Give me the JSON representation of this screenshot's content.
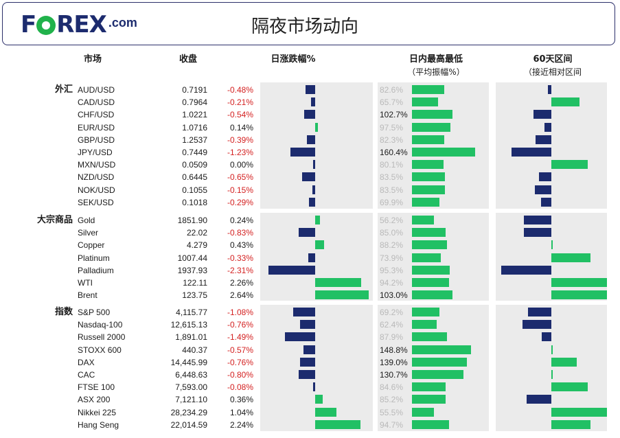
{
  "logo": {
    "word_left": "F",
    "word_right": "REX",
    "suffix": ".com"
  },
  "title": "隔夜市场动向",
  "columns": {
    "market": "市场",
    "close": "收盘",
    "daily_change": "日涨跌幅%",
    "intraday": "日内最高最低",
    "intraday_sub": "（平均振幅%）",
    "range60": "60天区间",
    "range60_sub": "（接近相对区间"
  },
  "colors": {
    "navy": "#1c2b6e",
    "green": "#21c064",
    "negative": "#d42020",
    "panel": "#ebebeb"
  },
  "groups": [
    {
      "label": "外汇",
      "rows": [
        {
          "name": "AUD/USD",
          "close": "0.7191",
          "chg": "-0.48%",
          "chg_val": -0.48,
          "amp": "82.6%",
          "amp_val": 82.6,
          "pos60": -0.06
        },
        {
          "name": "CAD/USD",
          "close": "0.7964",
          "chg": "-0.21%",
          "chg_val": -0.21,
          "amp": "65.7%",
          "amp_val": 65.7,
          "pos60": 0.5
        },
        {
          "name": "CHF/USD",
          "close": "1.0221",
          "chg": "-0.54%",
          "chg_val": -0.54,
          "amp": "102.7%",
          "amp_val": 102.7,
          "pos60": -0.32
        },
        {
          "name": "EUR/USD",
          "close": "1.0716",
          "chg": "0.14%",
          "chg_val": 0.14,
          "amp": "97.5%",
          "amp_val": 97.5,
          "pos60": -0.12
        },
        {
          "name": "GBP/USD",
          "close": "1.2537",
          "chg": "-0.39%",
          "chg_val": -0.39,
          "amp": "82.3%",
          "amp_val": 82.3,
          "pos60": -0.28
        },
        {
          "name": "JPY/USD",
          "close": "0.7449",
          "chg": "-1.23%",
          "chg_val": -1.23,
          "amp": "160.4%",
          "amp_val": 160.4,
          "pos60": -0.72
        },
        {
          "name": "MXN/USD",
          "close": "0.0509",
          "chg": "0.00%",
          "chg_val": 0.0,
          "amp": "80.1%",
          "amp_val": 80.1,
          "pos60": 0.65
        },
        {
          "name": "NZD/USD",
          "close": "0.6445",
          "chg": "-0.65%",
          "chg_val": -0.65,
          "amp": "83.5%",
          "amp_val": 83.5,
          "pos60": -0.22
        },
        {
          "name": "NOK/USD",
          "close": "0.1055",
          "chg": "-0.15%",
          "chg_val": -0.15,
          "amp": "83.5%",
          "amp_val": 83.5,
          "pos60": -0.3
        },
        {
          "name": "SEK/USD",
          "close": "0.1018",
          "chg": "-0.29%",
          "chg_val": -0.29,
          "amp": "69.9%",
          "amp_val": 69.9,
          "pos60": -0.19
        }
      ]
    },
    {
      "label": "大宗商品",
      "rows": [
        {
          "name": "Gold",
          "close": "1851.90",
          "chg": "0.24%",
          "chg_val": 0.24,
          "amp": "56.2%",
          "amp_val": 56.2,
          "pos60": -0.5
        },
        {
          "name": "Silver",
          "close": "22.02",
          "chg": "-0.83%",
          "chg_val": -0.83,
          "amp": "85.0%",
          "amp_val": 85.0,
          "pos60": -0.5
        },
        {
          "name": "Copper",
          "close": "4.279",
          "chg": "0.43%",
          "chg_val": 0.43,
          "amp": "88.2%",
          "amp_val": 88.2,
          "pos60": 0.02
        },
        {
          "name": "Platinum",
          "close": "1007.44",
          "chg": "-0.33%",
          "chg_val": -0.33,
          "amp": "73.9%",
          "amp_val": 73.9,
          "pos60": 0.7
        },
        {
          "name": "Palladium",
          "close": "1937.93",
          "chg": "-2.31%",
          "chg_val": -2.31,
          "amp": "95.3%",
          "amp_val": 95.3,
          "pos60": -0.9
        },
        {
          "name": "WTI",
          "close": "122.11",
          "chg": "2.26%",
          "chg_val": 2.26,
          "amp": "94.2%",
          "amp_val": 94.2,
          "pos60": 1.0
        },
        {
          "name": "Brent",
          "close": "123.75",
          "chg": "2.64%",
          "chg_val": 2.64,
          "amp": "103.0%",
          "amp_val": 103.0,
          "pos60": 1.0
        }
      ]
    },
    {
      "label": "指数",
      "rows": [
        {
          "name": "S&P 500",
          "close": "4,115.77",
          "chg": "-1.08%",
          "chg_val": -1.08,
          "amp": "69.2%",
          "amp_val": 69.2,
          "pos60": -0.42
        },
        {
          "name": "Nasdaq-100",
          "close": "12,615.13",
          "chg": "-0.76%",
          "chg_val": -0.76,
          "amp": "62.4%",
          "amp_val": 62.4,
          "pos60": -0.52
        },
        {
          "name": "Russell 2000",
          "close": "1,891.01",
          "chg": "-1.49%",
          "chg_val": -1.49,
          "amp": "87.9%",
          "amp_val": 87.9,
          "pos60": -0.17
        },
        {
          "name": "STOXX 600",
          "close": "440.37",
          "chg": "-0.57%",
          "chg_val": -0.57,
          "amp": "148.8%",
          "amp_val": 148.8,
          "pos60": 0.02
        },
        {
          "name": "DAX",
          "close": "14,445.99",
          "chg": "-0.76%",
          "chg_val": -0.76,
          "amp": "139.0%",
          "amp_val": 139.0,
          "pos60": 0.46
        },
        {
          "name": "CAC",
          "close": "6,448.63",
          "chg": "-0.80%",
          "chg_val": -0.8,
          "amp": "130.7%",
          "amp_val": 130.7,
          "pos60": 0.02
        },
        {
          "name": "FTSE 100",
          "close": "7,593.00",
          "chg": "-0.08%",
          "chg_val": -0.08,
          "amp": "84.6%",
          "amp_val": 84.6,
          "pos60": 0.66
        },
        {
          "name": "ASX 200",
          "close": "7,121.10",
          "chg": "0.36%",
          "chg_val": 0.36,
          "amp": "85.2%",
          "amp_val": 85.2,
          "pos60": -0.45
        },
        {
          "name": "Nikkei 225",
          "close": "28,234.29",
          "chg": "1.04%",
          "chg_val": 1.04,
          "amp": "55.5%",
          "amp_val": 55.5,
          "pos60": 1.0
        },
        {
          "name": "Hang Seng",
          "close": "22,014.59",
          "chg": "2.24%",
          "chg_val": 2.24,
          "amp": "94.7%",
          "amp_val": 94.7,
          "pos60": 0.7
        }
      ]
    }
  ]
}
